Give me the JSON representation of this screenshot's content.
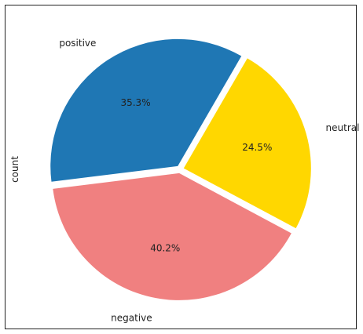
{
  "chart_data": {
    "type": "pie",
    "categories": [
      "positive",
      "negative",
      "neutral"
    ],
    "values": [
      35.3,
      40.2,
      24.5
    ],
    "value_labels": [
      "35.3%",
      "40.2%",
      "24.5%"
    ],
    "colors": [
      "#1f77b4",
      "#f08080",
      "#ffd700"
    ],
    "ylabel": "count",
    "start_angle_deg": 60,
    "exploded": true
  }
}
